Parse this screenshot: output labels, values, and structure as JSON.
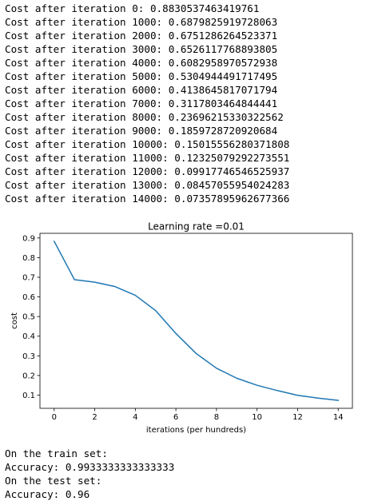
{
  "log_lines": [
    "Cost after iteration 0: 0.8830537463419761",
    "Cost after iteration 1000: 0.6879825919728063",
    "Cost after iteration 2000: 0.6751286264523371",
    "Cost after iteration 3000: 0.6526117768893805",
    "Cost after iteration 4000: 0.6082958970572938",
    "Cost after iteration 5000: 0.5304944491717495",
    "Cost after iteration 6000: 0.4138645817071794",
    "Cost after iteration 7000: 0.3117803464844441",
    "Cost after iteration 8000: 0.23696215330322562",
    "Cost after iteration 9000: 0.1859728720920684",
    "Cost after iteration 10000: 0.15015556280371808",
    "Cost after iteration 11000: 0.12325079292273551",
    "Cost after iteration 12000: 0.09917746546525937",
    "Cost after iteration 13000: 0.08457055954024283",
    "Cost after iteration 14000: 0.07357895962677366"
  ],
  "chart_data": {
    "type": "line",
    "title": "Learning rate =0.01",
    "xlabel": "iterations (per hundreds)",
    "ylabel": "cost",
    "x": [
      0,
      1,
      2,
      3,
      4,
      5,
      6,
      7,
      8,
      9,
      10,
      11,
      12,
      13,
      14
    ],
    "series": [
      {
        "values": [
          0.8830537463419761,
          0.6879825919728063,
          0.6751286264523371,
          0.6526117768893805,
          0.6082958970572938,
          0.5304944491717495,
          0.4138645817071794,
          0.3117803464844441,
          0.23696215330322562,
          0.1859728720920684,
          0.15015556280371808,
          0.12325079292273551,
          0.09917746546525937,
          0.08457055954024283,
          0.07357895962677366
        ],
        "color": "#1f77b4"
      }
    ],
    "xlim": [
      -0.7,
      14.7
    ],
    "ylim": [
      0.0329,
      0.9237
    ],
    "xticks": [
      0,
      2,
      4,
      6,
      8,
      10,
      12,
      14
    ],
    "xtick_labels": [
      "0",
      "2",
      "4",
      "6",
      "8",
      "10",
      "12",
      "14"
    ],
    "yticks": [
      0.1,
      0.2,
      0.3,
      0.4,
      0.5,
      0.6,
      0.7,
      0.8,
      0.9
    ],
    "ytick_labels": [
      "0.1",
      "0.2",
      "0.3",
      "0.4",
      "0.5",
      "0.6",
      "0.7",
      "0.8",
      "0.9"
    ],
    "grid": false,
    "legend": "none"
  },
  "results_lines": [
    "On the train set:",
    "Accuracy: 0.9933333333333333",
    "On the test set:",
    "Accuracy: 0.96"
  ]
}
